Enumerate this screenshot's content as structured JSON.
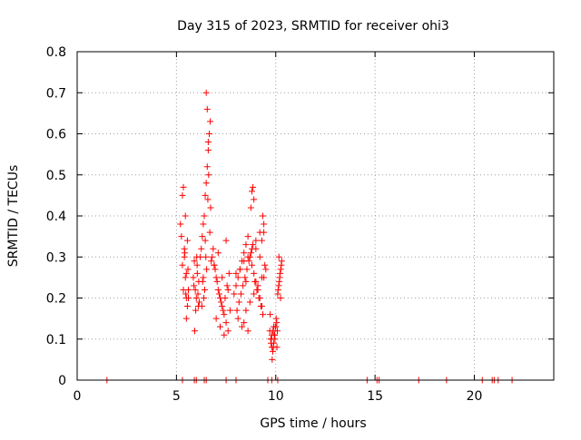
{
  "chart_data": {
    "type": "scatter",
    "title": "Day 315 of 2023, SRMTID for receiver ohi3",
    "xlabel": "GPS time / hours",
    "ylabel": "SRMTID / TECUs",
    "xlim": [
      0,
      24
    ],
    "ylim": [
      0,
      0.8
    ],
    "x_ticks": [
      0,
      5,
      10,
      15,
      20
    ],
    "x_tick_labels": [
      "0",
      "5",
      "10",
      "15",
      "20"
    ],
    "y_ticks": [
      0,
      0.1,
      0.2,
      0.3,
      0.4,
      0.5,
      0.6,
      0.7,
      0.8
    ],
    "y_tick_labels": [
      "0",
      "0.1",
      "0.2",
      "0.3",
      "0.4",
      "0.5",
      "0.6",
      "0.7",
      "0.8"
    ],
    "grid": true,
    "marker": "+",
    "series": [
      {
        "name": "SRMTID",
        "color": "#ff0000",
        "x": [
          5.2,
          5.25,
          5.3,
          5.35,
          5.4,
          5.45,
          5.5,
          5.55,
          5.6,
          5.3,
          5.4,
          5.5,
          5.45,
          5.55,
          5.6,
          5.5,
          5.35,
          5.42,
          5.58,
          5.47,
          5.9,
          5.95,
          6.0,
          6.05,
          6.1,
          5.85,
          5.92,
          6.02,
          6.08,
          5.97,
          6.12,
          6.15,
          5.88,
          6.04,
          6.2,
          6.25,
          6.3,
          6.35,
          6.4,
          6.45,
          6.5,
          6.55,
          6.6,
          6.65,
          6.7,
          6.35,
          6.45,
          6.5,
          6.55,
          6.6,
          6.62,
          6.58,
          6.48,
          6.52,
          6.42,
          6.38,
          6.28,
          6.32,
          6.68,
          6.72,
          6.8,
          6.9,
          7.0,
          7.1,
          7.2,
          7.3,
          7.4,
          7.5,
          7.6,
          7.7,
          6.85,
          6.95,
          7.05,
          7.15,
          7.25,
          7.35,
          7.45,
          7.55,
          7.65,
          6.75,
          7.0,
          7.2,
          7.4,
          7.1,
          6.9,
          7.3,
          7.6,
          7.5,
          7.9,
          8.0,
          8.1,
          8.2,
          8.3,
          8.4,
          8.5,
          8.6,
          8.7,
          8.8,
          8.9,
          9.0,
          9.1,
          9.2,
          9.3,
          9.4,
          9.5,
          8.05,
          8.15,
          8.25,
          8.35,
          8.45,
          8.55,
          8.65,
          8.75,
          8.85,
          8.95,
          9.05,
          9.15,
          9.25,
          9.35,
          9.45,
          8.1,
          8.3,
          8.5,
          8.7,
          8.9,
          9.1,
          9.3,
          8.2,
          8.4,
          8.6,
          8.8,
          9.0,
          9.2,
          9.4,
          8.8,
          8.85,
          8.9,
          8.75,
          9.35,
          9.4,
          9.3,
          8.6,
          8.4,
          9.0,
          9.2,
          8.0,
          8.5,
          9.7,
          9.75,
          9.8,
          9.85,
          9.9,
          9.95,
          10.0,
          10.05,
          9.72,
          9.78,
          9.82,
          9.88,
          9.92,
          9.98,
          10.02,
          10.08,
          9.76,
          9.86,
          9.96,
          10.06,
          9.8,
          9.9,
          10.1,
          10.15,
          10.2,
          10.25,
          10.3,
          10.12,
          10.18,
          10.22,
          10.28,
          10.16,
          10.24,
          1.5,
          5.3,
          5.9,
          6.0,
          6.4,
          6.5,
          7.5,
          8.0,
          9.6,
          9.8,
          10.1,
          14.6,
          15.1,
          15.2,
          17.2,
          18.6,
          20.4,
          20.9,
          21.0,
          21.2,
          21.9
        ],
        "y": [
          0.38,
          0.35,
          0.45,
          0.47,
          0.3,
          0.25,
          0.2,
          0.18,
          0.22,
          0.28,
          0.32,
          0.26,
          0.4,
          0.34,
          0.2,
          0.15,
          0.22,
          0.31,
          0.27,
          0.21,
          0.29,
          0.22,
          0.2,
          0.26,
          0.18,
          0.25,
          0.12,
          0.3,
          0.21,
          0.17,
          0.24,
          0.19,
          0.23,
          0.28,
          0.3,
          0.32,
          0.35,
          0.38,
          0.4,
          0.45,
          0.48,
          0.52,
          0.56,
          0.6,
          0.63,
          0.25,
          0.34,
          0.7,
          0.66,
          0.58,
          0.5,
          0.44,
          0.3,
          0.27,
          0.22,
          0.2,
          0.18,
          0.24,
          0.36,
          0.42,
          0.3,
          0.28,
          0.25,
          0.22,
          0.2,
          0.18,
          0.16,
          0.14,
          0.12,
          0.17,
          0.32,
          0.27,
          0.24,
          0.21,
          0.19,
          0.17,
          0.2,
          0.23,
          0.26,
          0.29,
          0.15,
          0.13,
          0.11,
          0.31,
          0.28,
          0.25,
          0.22,
          0.34,
          0.21,
          0.23,
          0.25,
          0.27,
          0.29,
          0.31,
          0.33,
          0.35,
          0.3,
          0.28,
          0.26,
          0.24,
          0.22,
          0.2,
          0.18,
          0.25,
          0.27,
          0.17,
          0.19,
          0.21,
          0.23,
          0.25,
          0.27,
          0.29,
          0.31,
          0.33,
          0.24,
          0.22,
          0.2,
          0.18,
          0.16,
          0.28,
          0.15,
          0.13,
          0.17,
          0.19,
          0.21,
          0.23,
          0.25,
          0.27,
          0.29,
          0.3,
          0.32,
          0.34,
          0.36,
          0.38,
          0.46,
          0.47,
          0.44,
          0.42,
          0.4,
          0.36,
          0.34,
          0.12,
          0.14,
          0.32,
          0.3,
          0.26,
          0.24,
          0.12,
          0.1,
          0.08,
          0.07,
          0.09,
          0.11,
          0.13,
          0.14,
          0.16,
          0.1,
          0.05,
          0.08,
          0.11,
          0.13,
          0.15,
          0.12,
          0.09,
          0.12,
          0.1,
          0.08,
          0.11,
          0.13,
          0.21,
          0.23,
          0.25,
          0.27,
          0.29,
          0.22,
          0.24,
          0.26,
          0.28,
          0.3,
          0.2,
          0,
          0,
          0,
          0,
          0,
          0,
          0,
          0,
          0,
          0,
          0,
          0,
          0,
          0,
          0,
          0,
          0,
          0,
          0,
          0,
          0
        ]
      }
    ]
  }
}
